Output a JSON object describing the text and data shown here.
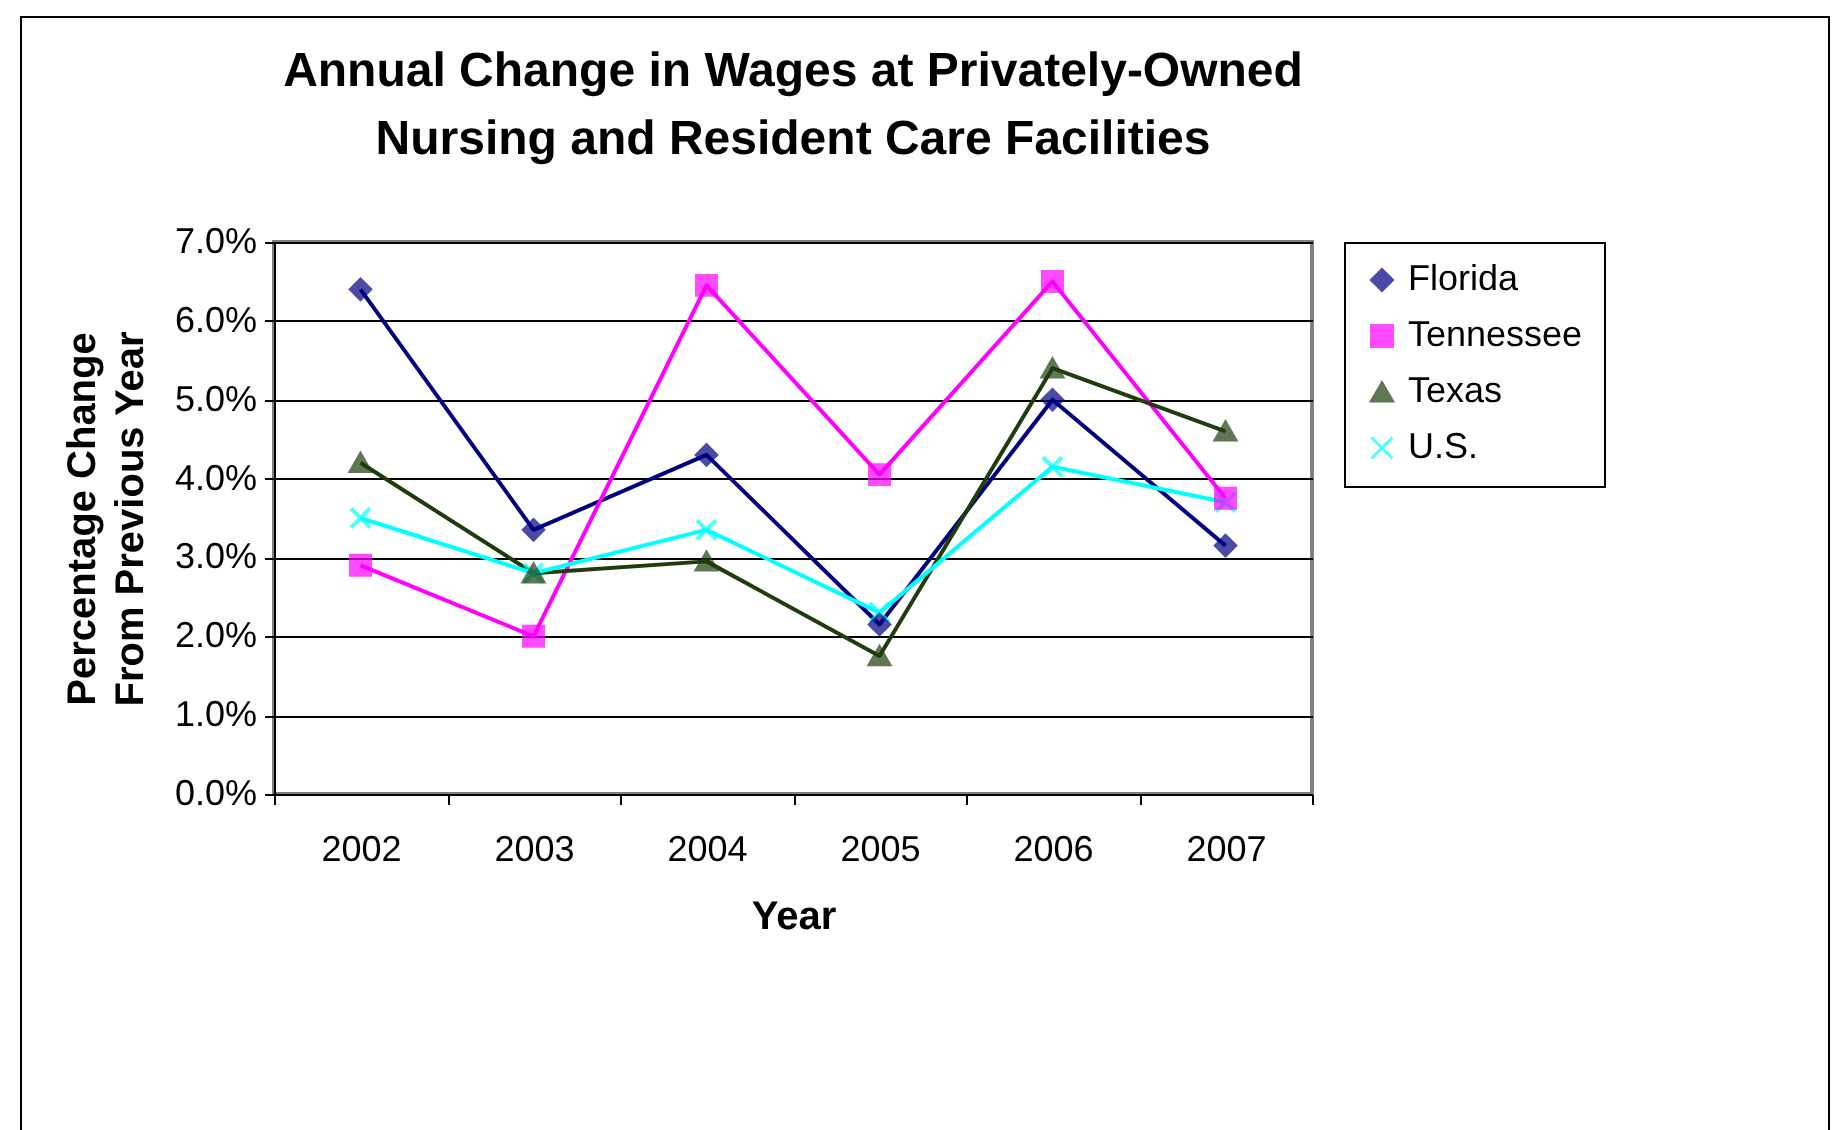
{
  "chart_data": {
    "type": "line",
    "title": "Annual Change in Wages at Privately-Owned Nursing and Resident Care Facilities",
    "xlabel": "Year",
    "ylabel": "Percentage Change From Previous Year",
    "categories": [
      "2002",
      "2003",
      "2004",
      "2005",
      "2006",
      "2007"
    ],
    "series": [
      {
        "name": "Florida",
        "color": "#000080",
        "marker": "diamond",
        "values": [
          6.4,
          3.35,
          4.3,
          2.15,
          5.0,
          3.15
        ]
      },
      {
        "name": "Tennessee",
        "color": "#ff00ff",
        "marker": "square",
        "values": [
          2.9,
          2.0,
          6.45,
          4.05,
          6.5,
          3.75
        ]
      },
      {
        "name": "Texas",
        "color": "#1f3d0c",
        "marker": "triangle",
        "values": [
          4.2,
          2.8,
          2.95,
          1.75,
          5.4,
          4.6
        ]
      },
      {
        "name": "U.S.",
        "color": "#00ffff",
        "marker": "cross",
        "values": [
          3.5,
          2.8,
          3.35,
          2.3,
          4.15,
          3.7
        ]
      }
    ],
    "ylim": [
      0,
      7
    ],
    "yticks": [
      {
        "value": 0,
        "label": "0.0%"
      },
      {
        "value": 1,
        "label": "1.0%"
      },
      {
        "value": 2,
        "label": "2.0%"
      },
      {
        "value": 3,
        "label": "3.0%"
      },
      {
        "value": 4,
        "label": "4.0%"
      },
      {
        "value": 5,
        "label": "5.0%"
      },
      {
        "value": 6,
        "label": "6.0%"
      },
      {
        "value": 7,
        "label": "7.0%"
      }
    ],
    "grid": "y",
    "legend": "right",
    "line_style": "solid"
  }
}
